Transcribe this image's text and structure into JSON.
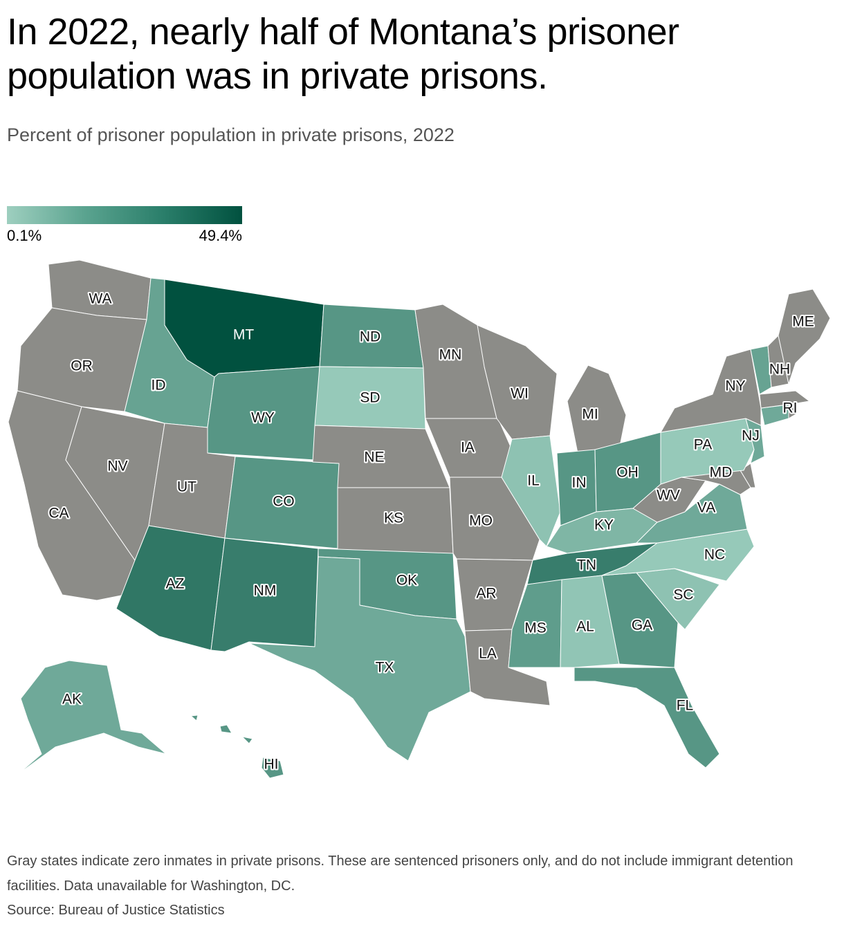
{
  "title": "In 2022, nearly half of Montana’s prisoner population was in private prisons.",
  "subtitle": "Percent of prisoner population in private prisons, 2022",
  "legend": {
    "min_label": "0.1%",
    "max_label": "49.4%",
    "min_value": 0.1,
    "max_value": 49.4,
    "color_low": "#9ecfbf",
    "color_high": "#01513f",
    "zero_color": "#8c8c88"
  },
  "states": [
    {
      "abbr": "WA",
      "shade": "zero"
    },
    {
      "abbr": "OR",
      "shade": "zero"
    },
    {
      "abbr": "CA",
      "shade": "zero"
    },
    {
      "abbr": "NV",
      "shade": "zero"
    },
    {
      "abbr": "ID",
      "shade": 0.35
    },
    {
      "abbr": "MT",
      "shade": 1.0
    },
    {
      "abbr": "WY",
      "shade": 0.45
    },
    {
      "abbr": "UT",
      "shade": "zero"
    },
    {
      "abbr": "AZ",
      "shade": 0.7
    },
    {
      "abbr": "CO",
      "shade": 0.45
    },
    {
      "abbr": "NM",
      "shade": 0.65
    },
    {
      "abbr": "ND",
      "shade": 0.45
    },
    {
      "abbr": "SD",
      "shade": 0.05
    },
    {
      "abbr": "NE",
      "shade": "zero"
    },
    {
      "abbr": "KS",
      "shade": "zero"
    },
    {
      "abbr": "OK",
      "shade": 0.45
    },
    {
      "abbr": "TX",
      "shade": 0.3
    },
    {
      "abbr": "MN",
      "shade": "zero"
    },
    {
      "abbr": "IA",
      "shade": "zero"
    },
    {
      "abbr": "MO",
      "shade": "zero"
    },
    {
      "abbr": "AR",
      "shade": "zero"
    },
    {
      "abbr": "LA",
      "shade": "zero"
    },
    {
      "abbr": "WI",
      "shade": "zero"
    },
    {
      "abbr": "IL",
      "shade": 0.1
    },
    {
      "abbr": "MI",
      "shade": "zero"
    },
    {
      "abbr": "IN",
      "shade": 0.45
    },
    {
      "abbr": "OH",
      "shade": 0.45
    },
    {
      "abbr": "KY",
      "shade": 0.2
    },
    {
      "abbr": "TN",
      "shade": 0.65
    },
    {
      "abbr": "MS",
      "shade": 0.4
    },
    {
      "abbr": "AL",
      "shade": 0.08
    },
    {
      "abbr": "GA",
      "shade": 0.45
    },
    {
      "abbr": "FL",
      "shade": 0.45
    },
    {
      "abbr": "SC",
      "shade": 0.1
    },
    {
      "abbr": "NC",
      "shade": 0.05
    },
    {
      "abbr": "VA",
      "shade": 0.3
    },
    {
      "abbr": "WV",
      "shade": "zero"
    },
    {
      "abbr": "MD",
      "shade": "zero"
    },
    {
      "abbr": "DE",
      "shade": "zero"
    },
    {
      "abbr": "PA",
      "shade": 0.05
    },
    {
      "abbr": "NJ",
      "shade": 0.3
    },
    {
      "abbr": "NY",
      "shade": "zero"
    },
    {
      "abbr": "CT",
      "shade": 0.3
    },
    {
      "abbr": "RI",
      "shade": "zero"
    },
    {
      "abbr": "MA",
      "shade": "zero"
    },
    {
      "abbr": "VT",
      "shade": 0.35
    },
    {
      "abbr": "NH",
      "shade": "zero"
    },
    {
      "abbr": "ME",
      "shade": "zero"
    },
    {
      "abbr": "AK",
      "shade": 0.3
    },
    {
      "abbr": "HI",
      "shade": 0.45
    }
  ],
  "notes": "Gray states indicate zero inmates in private prisons. These are sentenced prisoners only, and do not include immigrant detention facilities. Data unavailable for Washington, DC.",
  "source": "Source: Bureau of Justice Statistics"
}
